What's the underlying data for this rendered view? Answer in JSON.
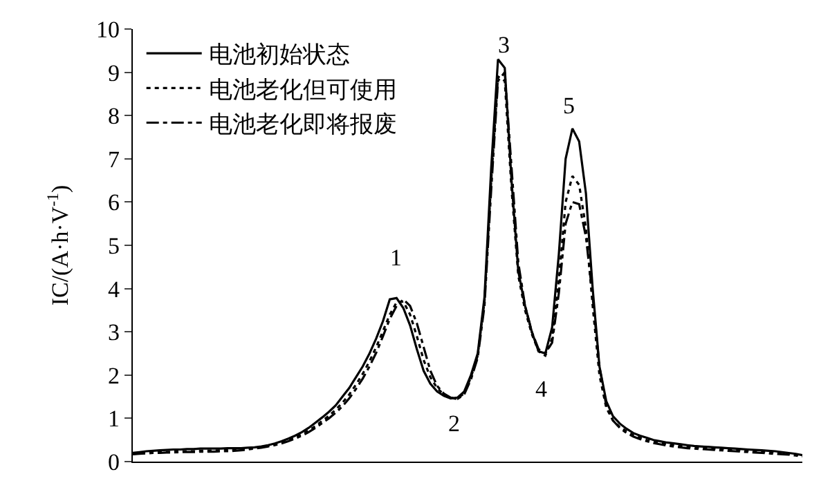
{
  "chart_data": {
    "type": "line",
    "ylabel": "IC/(A·h·V$^{-1}$)",
    "categories": [
      null,
      null,
      null,
      null,
      null,
      null,
      null,
      null,
      null,
      null,
      null,
      null,
      null,
      null,
      null,
      null,
      null,
      null,
      null,
      null,
      null,
      null,
      null,
      null,
      null,
      null,
      null,
      null,
      null,
      null,
      null,
      null,
      null,
      null,
      null,
      null,
      null,
      null,
      null,
      null,
      null,
      null,
      null,
      null,
      null,
      null,
      null,
      null,
      null,
      null,
      null,
      null,
      null,
      null,
      null,
      null,
      null,
      null,
      null,
      null,
      null,
      null,
      null,
      null,
      null,
      null,
      null,
      null,
      null,
      null,
      null,
      null,
      null,
      null,
      null,
      null,
      null,
      null,
      null,
      null,
      null,
      null,
      null,
      null,
      null,
      null,
      null,
      null,
      null,
      null,
      null,
      null,
      null,
      null,
      null,
      null,
      null,
      null,
      null,
      null
    ],
    "series": [
      {
        "name": "电池初始状态",
        "color": "#000000",
        "line_style": "solid",
        "values": [
          0.2,
          0.22,
          0.24,
          0.25,
          0.26,
          0.27,
          0.28,
          0.28,
          0.29,
          0.29,
          0.3,
          0.3,
          0.3,
          0.3,
          0.31,
          0.31,
          0.31,
          0.32,
          0.33,
          0.35,
          0.38,
          0.42,
          0.47,
          0.53,
          0.6,
          0.68,
          0.78,
          0.9,
          1.02,
          1.15,
          1.3,
          1.5,
          1.7,
          1.95,
          2.2,
          2.5,
          2.85,
          3.25,
          3.75,
          3.78,
          3.55,
          3.15,
          2.6,
          2.1,
          1.8,
          1.62,
          1.52,
          1.46,
          1.48,
          1.62,
          2.0,
          2.5,
          3.8,
          6.8,
          9.3,
          9.1,
          6.5,
          4.4,
          3.6,
          3.0,
          2.55,
          2.5,
          3.1,
          4.8,
          7.0,
          7.7,
          7.4,
          6.2,
          4.0,
          2.2,
          1.4,
          1.05,
          0.88,
          0.76,
          0.66,
          0.6,
          0.55,
          0.5,
          0.47,
          0.44,
          0.42,
          0.4,
          0.38,
          0.36,
          0.35,
          0.34,
          0.33,
          0.32,
          0.31,
          0.3,
          0.29,
          0.28,
          0.27,
          0.26,
          0.25,
          0.24,
          0.22,
          0.2,
          0.18,
          0.15
        ]
      },
      {
        "name": "电池老化但可使用",
        "color": "#000000",
        "line_style": "dotted",
        "values": [
          0.18,
          0.19,
          0.2,
          0.21,
          0.22,
          0.22,
          0.23,
          0.23,
          0.24,
          0.24,
          0.25,
          0.25,
          0.25,
          0.26,
          0.26,
          0.27,
          0.28,
          0.3,
          0.32,
          0.34,
          0.37,
          0.4,
          0.45,
          0.5,
          0.56,
          0.63,
          0.72,
          0.82,
          0.94,
          1.06,
          1.2,
          1.36,
          1.55,
          1.78,
          2.03,
          2.32,
          2.65,
          3.02,
          3.4,
          3.68,
          3.7,
          3.4,
          2.9,
          2.35,
          1.95,
          1.7,
          1.55,
          1.47,
          1.45,
          1.58,
          1.95,
          2.45,
          3.7,
          6.5,
          8.9,
          8.8,
          6.3,
          4.3,
          3.5,
          2.95,
          2.55,
          2.45,
          2.85,
          4.2,
          6.0,
          6.6,
          6.4,
          5.4,
          3.6,
          2.0,
          1.25,
          0.95,
          0.8,
          0.7,
          0.61,
          0.55,
          0.5,
          0.46,
          0.43,
          0.4,
          0.38,
          0.36,
          0.34,
          0.33,
          0.32,
          0.31,
          0.3,
          0.29,
          0.28,
          0.27,
          0.26,
          0.25,
          0.24,
          0.23,
          0.22,
          0.21,
          0.2,
          0.18,
          0.16,
          0.14
        ]
      },
      {
        "name": "电池老化即将报废",
        "color": "#000000",
        "line_style": "dashdot",
        "values": [
          0.17,
          0.18,
          0.19,
          0.2,
          0.2,
          0.21,
          0.21,
          0.22,
          0.22,
          0.22,
          0.23,
          0.23,
          0.23,
          0.24,
          0.24,
          0.25,
          0.26,
          0.28,
          0.3,
          0.32,
          0.35,
          0.38,
          0.42,
          0.47,
          0.53,
          0.6,
          0.68,
          0.78,
          0.89,
          1.0,
          1.13,
          1.28,
          1.46,
          1.68,
          1.92,
          2.2,
          2.52,
          2.9,
          3.3,
          3.6,
          3.75,
          3.6,
          3.2,
          2.65,
          2.1,
          1.75,
          1.57,
          1.48,
          1.45,
          1.55,
          1.9,
          2.4,
          3.6,
          6.3,
          8.8,
          9.0,
          6.8,
          4.6,
          3.6,
          3.0,
          2.6,
          2.5,
          2.75,
          3.9,
          5.5,
          6.0,
          5.95,
          5.2,
          3.8,
          2.2,
          1.3,
          0.95,
          0.78,
          0.66,
          0.58,
          0.52,
          0.47,
          0.43,
          0.4,
          0.37,
          0.35,
          0.33,
          0.31,
          0.3,
          0.29,
          0.28,
          0.27,
          0.26,
          0.25,
          0.24,
          0.23,
          0.22,
          0.21,
          0.2,
          0.19,
          0.18,
          0.17,
          0.16,
          0.14,
          0.12
        ]
      }
    ],
    "ylim": [
      0,
      10
    ],
    "yticks": [
      0,
      1,
      2,
      3,
      4,
      5,
      6,
      7,
      8,
      9,
      10
    ],
    "annotations": [
      "1",
      "2",
      "3",
      "4",
      "5"
    ],
    "grid": false,
    "legend": "top left",
    "tick_labels": "y",
    "marker": "none"
  }
}
